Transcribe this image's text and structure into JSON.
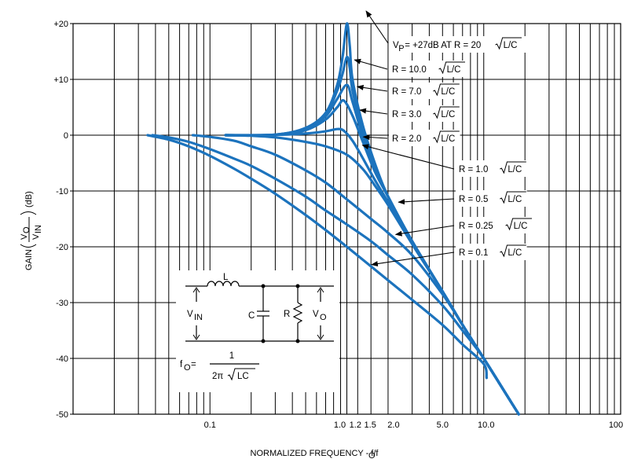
{
  "chart_data": {
    "type": "line",
    "xlabel": "NORMALIZED FREQUENCY - f/f",
    "xlabel_sub": "O",
    "ylabel": {
      "prefix": "GAIN",
      "num": "V",
      "num_sub": "O",
      "den": "V",
      "den_sub": "IN",
      "unit": "(dB)"
    },
    "x_scale": "log",
    "xlim": [
      0.01,
      100
    ],
    "ylim": [
      -50,
      20
    ],
    "grid": true,
    "x_ticks": [
      {
        "value": 0.1,
        "label": "0.1"
      },
      {
        "value": 1.0,
        "label": "1.0"
      },
      {
        "value": 1.2,
        "label": "1.2"
      },
      {
        "value": 1.5,
        "label": "1.5"
      },
      {
        "value": 2.0,
        "label": "2.0"
      },
      {
        "value": 5.0,
        "label": "5.0"
      },
      {
        "value": 10.0,
        "label": "10.0"
      },
      {
        "value": 100,
        "label": "100"
      }
    ],
    "y_ticks": [
      {
        "value": 20,
        "label": "+20"
      },
      {
        "value": 10,
        "label": "+10"
      },
      {
        "value": 0,
        "label": "0"
      },
      {
        "value": -10,
        "label": "-10"
      },
      {
        "value": -20,
        "label": "-20"
      },
      {
        "value": -30,
        "label": "-30"
      },
      {
        "value": -40,
        "label": "-40"
      },
      {
        "value": -50,
        "label": "-50"
      }
    ],
    "series": [
      {
        "r": 20.0,
        "points": [
          [
            0.13,
            0
          ],
          [
            0.3,
            0.1
          ],
          [
            0.5,
            1.3
          ],
          [
            0.7,
            4
          ],
          [
            0.85,
            9
          ],
          [
            0.93,
            14
          ],
          [
            1.0,
            20
          ],
          [
            1.05,
            16
          ],
          [
            1.1,
            10
          ],
          [
            1.3,
            2
          ],
          [
            1.6,
            -5
          ],
          [
            2.0,
            -11
          ],
          [
            3.0,
            -19
          ],
          [
            5.0,
            -28
          ],
          [
            7.0,
            -34
          ],
          [
            10.0,
            -40
          ],
          [
            16.0,
            -48
          ],
          [
            18.0,
            -50
          ]
        ]
      },
      {
        "r": 10.0,
        "points": [
          [
            0.13,
            0
          ],
          [
            0.3,
            0.1
          ],
          [
            0.5,
            1.2
          ],
          [
            0.7,
            3.8
          ],
          [
            0.85,
            8
          ],
          [
            0.93,
            11
          ],
          [
            1.0,
            14
          ],
          [
            1.05,
            12
          ],
          [
            1.1,
            8
          ],
          [
            1.3,
            1
          ],
          [
            1.6,
            -5.5
          ],
          [
            2.0,
            -11
          ],
          [
            3.0,
            -19
          ],
          [
            5.0,
            -28
          ],
          [
            7.0,
            -34
          ],
          [
            10.0,
            -40
          ],
          [
            16.0,
            -48
          ],
          [
            18.0,
            -50
          ]
        ]
      },
      {
        "r": 7.0,
        "points": [
          [
            0.13,
            0
          ],
          [
            0.3,
            0.1
          ],
          [
            0.5,
            1.1
          ],
          [
            0.7,
            3.4
          ],
          [
            0.85,
            6.5
          ],
          [
            1.0,
            9
          ],
          [
            1.1,
            6
          ],
          [
            1.3,
            0
          ],
          [
            1.6,
            -6
          ],
          [
            2.0,
            -11
          ],
          [
            3.0,
            -19
          ],
          [
            5.0,
            -28
          ],
          [
            7.0,
            -34
          ],
          [
            10.0,
            -40
          ],
          [
            16.0,
            -48
          ],
          [
            18.0,
            -50
          ]
        ]
      },
      {
        "r": 3.0,
        "points": [
          [
            0.13,
            0
          ],
          [
            0.3,
            0.05
          ],
          [
            0.5,
            0.9
          ],
          [
            0.7,
            2.8
          ],
          [
            0.85,
            5
          ],
          [
            0.95,
            6.2
          ],
          [
            1.1,
            3.5
          ],
          [
            1.3,
            -1
          ],
          [
            1.6,
            -6.5
          ],
          [
            2.0,
            -11
          ],
          [
            3.0,
            -19
          ],
          [
            5.0,
            -28
          ],
          [
            7.0,
            -34
          ],
          [
            10.0,
            -40
          ],
          [
            16.0,
            -48
          ],
          [
            18.0,
            -50
          ]
        ]
      },
      {
        "r": 2.0,
        "points": [
          [
            0.13,
            0
          ],
          [
            0.3,
            0.05
          ],
          [
            0.5,
            0.3
          ],
          [
            0.7,
            0.7
          ],
          [
            0.85,
            1.1
          ],
          [
            0.95,
            0.8
          ],
          [
            1.1,
            -1
          ],
          [
            1.3,
            -4
          ],
          [
            1.6,
            -8
          ],
          [
            2.0,
            -12
          ],
          [
            3.0,
            -19.5
          ],
          [
            5.0,
            -28
          ],
          [
            7.0,
            -34
          ],
          [
            10.0,
            -40
          ],
          [
            16.0,
            -48
          ],
          [
            18.0,
            -50
          ]
        ]
      },
      {
        "r": 1.0,
        "points": [
          [
            0.13,
            0
          ],
          [
            0.2,
            -0.1
          ],
          [
            0.3,
            -0.4
          ],
          [
            0.5,
            -1.2
          ],
          [
            0.7,
            -2
          ],
          [
            1.0,
            -3.5
          ],
          [
            1.3,
            -6
          ],
          [
            1.6,
            -9
          ],
          [
            2.0,
            -12.5
          ],
          [
            3.0,
            -19.5
          ],
          [
            5.0,
            -28
          ],
          [
            7.0,
            -34
          ],
          [
            10.0,
            -40
          ],
          [
            16.0,
            -48
          ],
          [
            18.0,
            -50
          ]
        ]
      },
      {
        "r": 0.5,
        "points": [
          [
            0.075,
            0
          ],
          [
            0.1,
            -0.3
          ],
          [
            0.15,
            -1
          ],
          [
            0.2,
            -2
          ],
          [
            0.3,
            -3.5
          ],
          [
            0.5,
            -6.3
          ],
          [
            0.7,
            -8.5
          ],
          [
            1.0,
            -11.5
          ],
          [
            1.5,
            -15
          ],
          [
            2.0,
            -17.5
          ],
          [
            3.0,
            -21.5
          ],
          [
            5.0,
            -28.5
          ],
          [
            7.0,
            -34
          ],
          [
            10.0,
            -40
          ],
          [
            16.0,
            -48
          ],
          [
            18.0,
            -50
          ]
        ]
      },
      {
        "r": 0.25,
        "points": [
          [
            0.038,
            0
          ],
          [
            0.05,
            -0.4
          ],
          [
            0.07,
            -1.2
          ],
          [
            0.1,
            -2.5
          ],
          [
            0.15,
            -4.2
          ],
          [
            0.2,
            -5.5
          ],
          [
            0.3,
            -7.8
          ],
          [
            0.5,
            -11
          ],
          [
            0.7,
            -13.5
          ],
          [
            1.0,
            -16
          ],
          [
            1.5,
            -19
          ],
          [
            2.0,
            -21.5
          ],
          [
            3.0,
            -25
          ],
          [
            5.0,
            -30.5
          ],
          [
            7.0,
            -35
          ],
          [
            10.0,
            -40
          ],
          [
            16.0,
            -48
          ],
          [
            18.0,
            -50
          ]
        ]
      },
      {
        "r": 0.1,
        "points": [
          [
            0.035,
            0
          ],
          [
            0.05,
            -0.8
          ],
          [
            0.07,
            -2
          ],
          [
            0.1,
            -3.7
          ],
          [
            0.15,
            -6
          ],
          [
            0.2,
            -7.8
          ],
          [
            0.3,
            -10.5
          ],
          [
            0.5,
            -14.3
          ],
          [
            0.7,
            -17
          ],
          [
            1.0,
            -20
          ],
          [
            1.5,
            -23.5
          ],
          [
            2.0,
            -26
          ],
          [
            3.0,
            -29.5
          ],
          [
            5.0,
            -34
          ],
          [
            7.0,
            -37.5
          ],
          [
            10.0,
            -41
          ],
          [
            10.5,
            -43.5
          ]
        ]
      }
    ],
    "annotations": [
      {
        "text": "V",
        "sub": "P",
        "rest": " = +27dB AT R = 20",
        "root": "L/C",
        "arrow_to": [
          1.0,
          20
        ],
        "arrow_up": true
      },
      {
        "text": "R = 10.0",
        "root": "L/C",
        "arrow_to": [
          1.05,
          13.5
        ]
      },
      {
        "text": "R = 7.0",
        "root": "L/C",
        "arrow_to": [
          1.1,
          8.7
        ]
      },
      {
        "text": "R = 3.0",
        "root": "L/C",
        "arrow_to": [
          1.15,
          4.5
        ]
      },
      {
        "text": "R = 2.0",
        "root": "L/C",
        "arrow_to": [
          1.22,
          -0.3
        ]
      },
      {
        "text": "R = 1.0",
        "root": "L/C",
        "arrow_to": [
          1.2,
          -1.8
        ]
      },
      {
        "text": "R = 0.5",
        "root": "L/C",
        "arrow_to": [
          2.2,
          -12
        ]
      },
      {
        "text": "R = 0.25",
        "root": "L/C",
        "arrow_to": [
          2.1,
          -17.8
        ]
      },
      {
        "text": "R = 0.1",
        "root": "L/C",
        "arrow_to": [
          1.4,
          -23.2
        ]
      }
    ],
    "inset": {
      "inductor": "L",
      "capacitor": "C",
      "resistor": "R",
      "vin": "V",
      "vin_sub": "IN",
      "vout": "V",
      "vout_sub": "O",
      "formula_lhs": "f",
      "formula_lhs_sub": "O",
      "formula_eq": " = ",
      "formula_num": "1",
      "formula_den": "2π",
      "formula_root": "LC"
    },
    "colors": {
      "curve": "#1c73bd",
      "grid": "#000000"
    }
  }
}
